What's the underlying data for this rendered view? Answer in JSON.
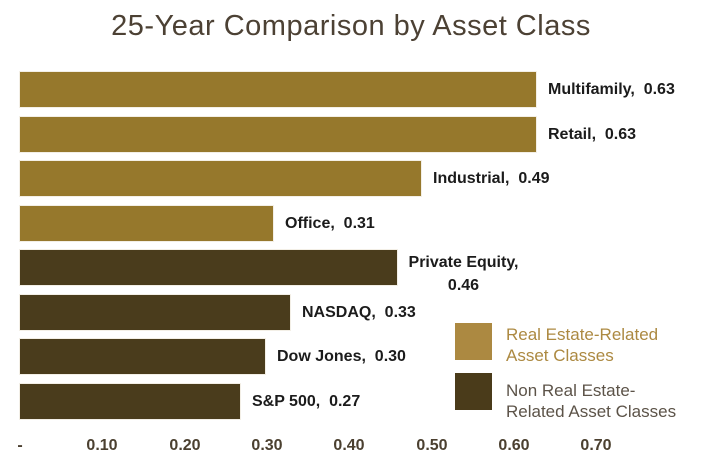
{
  "chart_data": {
    "type": "bar",
    "orientation": "horizontal",
    "title": "25-Year Comparison by Asset Class",
    "categories": [
      "Multifamily",
      "Retail",
      "Industrial",
      "Office",
      "Private Equity",
      "NASDAQ",
      "Dow Jones",
      "S&P 500"
    ],
    "values": [
      0.63,
      0.63,
      0.49,
      0.31,
      0.46,
      0.33,
      0.3,
      0.27
    ],
    "xlabel": "",
    "ylabel": "",
    "xlim": [
      0,
      0.7
    ],
    "grid": false,
    "legend_position": "bottom-right",
    "x_ticks": [
      {
        "label": "-",
        "value": 0.0
      },
      {
        "label": "0.10",
        "value": 0.1
      },
      {
        "label": "0.20",
        "value": 0.2
      },
      {
        "label": "0.30",
        "value": 0.3
      },
      {
        "label": "0.40",
        "value": 0.4
      },
      {
        "label": "0.50",
        "value": 0.5
      },
      {
        "label": "0.60",
        "value": 0.6
      },
      {
        "label": "0.70",
        "value": 0.7
      }
    ],
    "bars": [
      {
        "category": "Multifamily",
        "value": 0.63,
        "group": "real_estate",
        "label_lines": [
          "Multifamily,  0.63"
        ]
      },
      {
        "category": "Retail",
        "value": 0.63,
        "group": "real_estate",
        "label_lines": [
          "Retail,  0.63"
        ]
      },
      {
        "category": "Industrial",
        "value": 0.49,
        "group": "real_estate",
        "label_lines": [
          "Industrial,  0.49"
        ]
      },
      {
        "category": "Office",
        "value": 0.31,
        "group": "real_estate",
        "label_lines": [
          "Office,  0.31"
        ]
      },
      {
        "category": "Private Equity",
        "value": 0.46,
        "group": "non_real_estate",
        "label_lines": [
          "Private Equity,",
          "0.46"
        ]
      },
      {
        "category": "NASDAQ",
        "value": 0.33,
        "group": "non_real_estate",
        "label_lines": [
          "NASDAQ,  0.33"
        ]
      },
      {
        "category": "Dow Jones",
        "value": 0.3,
        "group": "non_real_estate",
        "label_lines": [
          "Dow Jones,  0.30"
        ]
      },
      {
        "category": "S&P 500",
        "value": 0.27,
        "group": "non_real_estate",
        "label_lines": [
          "S&P 500,  0.27"
        ]
      }
    ],
    "legend": [
      {
        "group": "real_estate",
        "label_lines": [
          "Real Estate-Related",
          "Asset Classes"
        ]
      },
      {
        "group": "non_real_estate",
        "label_lines": [
          "Non Real Estate-",
          "Related Asset Classes"
        ]
      }
    ]
  },
  "colors": {
    "background": "#FFFFFF",
    "title_text": "#4C4134",
    "real_estate_bar": "#96782C",
    "non_real_estate_bar": "#4A3C1C",
    "data_label_text": "#1B1B1B",
    "axis_tick_text": "#4B4030",
    "legend_real_estate_swatch": "#AC8941",
    "legend_non_real_estate_swatch": "#4A3B1A",
    "legend_real_estate_text": "#AC8941",
    "legend_non_real_estate_text": "#5C5348"
  }
}
